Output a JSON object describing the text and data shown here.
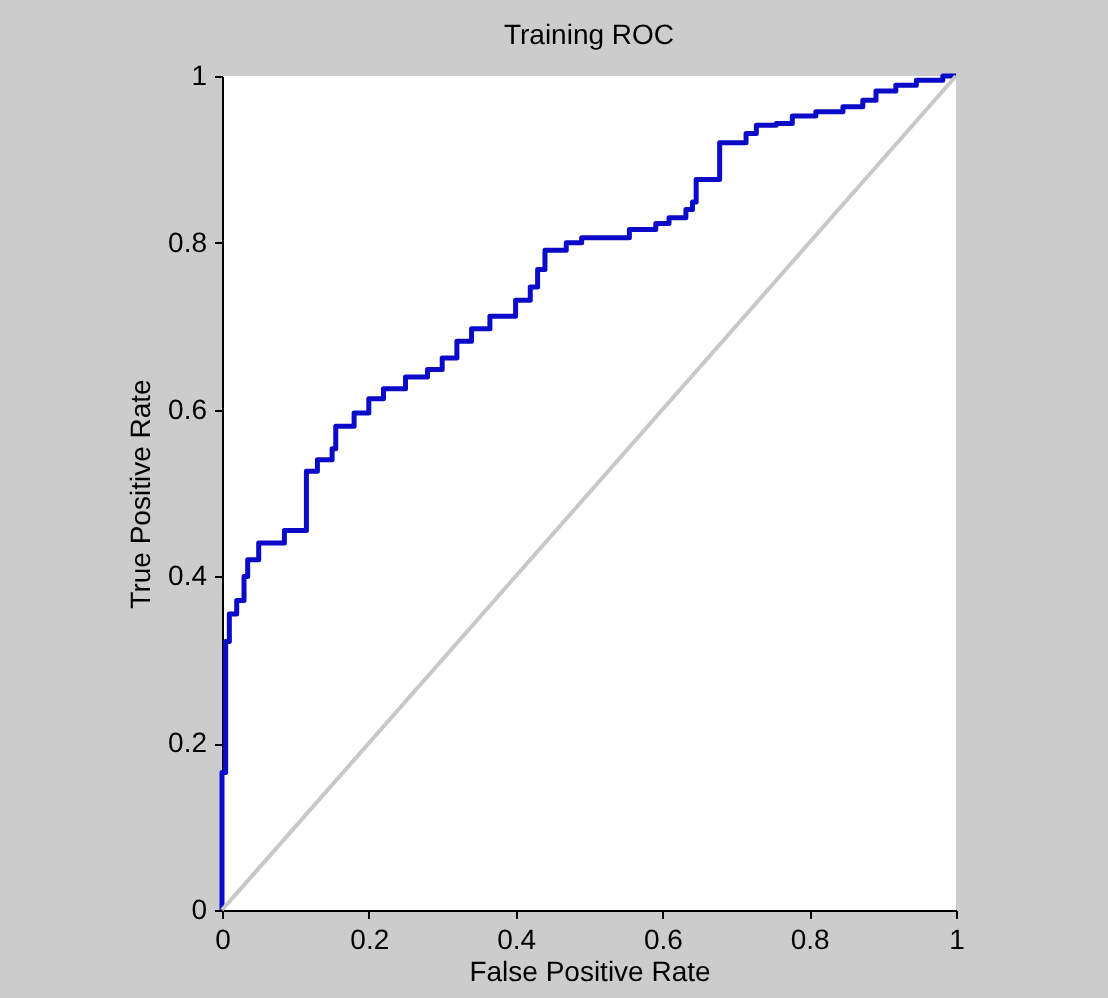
{
  "chart_data": {
    "type": "line",
    "title": "Training ROC",
    "xlabel": "False Positive Rate",
    "ylabel": "True Positive Rate",
    "xlim": [
      0,
      1
    ],
    "ylim": [
      0,
      1
    ],
    "xticks": [
      0,
      0.2,
      0.4,
      0.6,
      0.8,
      1
    ],
    "yticks": [
      0,
      0.2,
      0.4,
      0.6,
      0.8,
      1
    ],
    "marker": "none",
    "line_style": "solid",
    "series": [
      {
        "color": "#0a0ac8",
        "x": [
          0,
          0,
          0.005,
          0.005,
          0.01,
          0.01,
          0.02,
          0.02,
          0.03,
          0.03,
          0.035,
          0.035,
          0.05,
          0.05,
          0.06,
          0.06,
          0.08,
          0.085,
          0.085,
          0.115,
          0.115,
          0.13,
          0.13,
          0.15,
          0.15,
          0.155,
          0.155,
          0.18,
          0.18,
          0.2,
          0.2,
          0.22,
          0.22,
          0.24,
          0.25,
          0.25,
          0.28,
          0.28,
          0.3,
          0.3,
          0.32,
          0.32,
          0.34,
          0.34,
          0.36,
          0.365,
          0.365,
          0.39,
          0.4,
          0.4,
          0.42,
          0.42,
          0.43,
          0.43,
          0.44,
          0.44,
          0.469,
          0.469,
          0.49,
          0.49,
          0.546,
          0.555,
          0.555,
          0.591,
          0.591,
          0.609,
          0.609,
          0.632,
          0.632,
          0.641,
          0.641,
          0.646,
          0.646,
          0.673,
          0.678,
          0.678,
          0.705,
          0.714,
          0.714,
          0.728,
          0.728,
          0.755,
          0.755,
          0.777,
          0.777,
          0.809,
          0.809,
          0.846,
          0.846,
          0.873,
          0.873,
          0.891,
          0.891,
          0.918,
          0.918,
          0.946,
          0.946,
          0.982,
          0.982,
          1
        ],
        "values": [
          0,
          0.165,
          0.165,
          0.322,
          0.322,
          0.355,
          0.355,
          0.371,
          0.371,
          0.4,
          0.4,
          0.42,
          0.42,
          0.44,
          0.44,
          0.44,
          0.44,
          0.44,
          0.455,
          0.455,
          0.526,
          0.526,
          0.54,
          0.54,
          0.553,
          0.553,
          0.58,
          0.58,
          0.596,
          0.596,
          0.613,
          0.613,
          0.625,
          0.625,
          0.625,
          0.639,
          0.639,
          0.648,
          0.648,
          0.662,
          0.662,
          0.682,
          0.682,
          0.697,
          0.697,
          0.697,
          0.712,
          0.712,
          0.712,
          0.731,
          0.731,
          0.747,
          0.747,
          0.768,
          0.768,
          0.791,
          0.791,
          0.8,
          0.8,
          0.806,
          0.806,
          0.806,
          0.816,
          0.816,
          0.823,
          0.823,
          0.83,
          0.83,
          0.84,
          0.84,
          0.849,
          0.849,
          0.876,
          0.876,
          0.876,
          0.92,
          0.92,
          0.92,
          0.931,
          0.931,
          0.941,
          0.941,
          0.943,
          0.943,
          0.952,
          0.952,
          0.957,
          0.957,
          0.963,
          0.963,
          0.971,
          0.971,
          0.982,
          0.982,
          0.989,
          0.989,
          0.995,
          0.995,
          1,
          1
        ]
      },
      {
        "color": "#c8c8c8",
        "x": [
          0,
          1
        ],
        "values": [
          0,
          1
        ]
      }
    ]
  }
}
